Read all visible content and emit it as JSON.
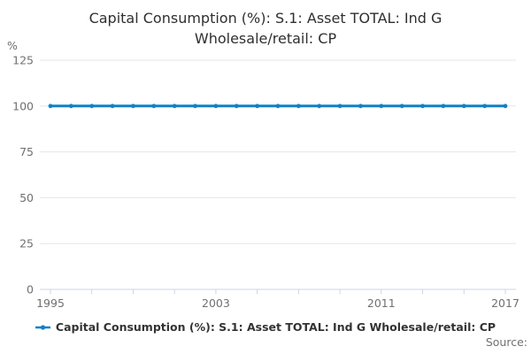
{
  "chart_data": {
    "type": "line",
    "title": "Capital Consumption (%): S.1: Asset TOTAL: Ind G Wholesale/retail: CP",
    "xlabel": "",
    "ylabel": "%",
    "x": [
      1995,
      1996,
      1997,
      1998,
      1999,
      2000,
      2001,
      2002,
      2003,
      2004,
      2005,
      2006,
      2007,
      2008,
      2009,
      2010,
      2011,
      2012,
      2013,
      2014,
      2015,
      2016,
      2017
    ],
    "series": [
      {
        "name": "Capital Consumption (%): S.1: Asset TOTAL: Ind G Wholesale/retail: CP",
        "values": [
          100,
          100,
          100,
          100,
          100,
          100,
          100,
          100,
          100,
          100,
          100,
          100,
          100,
          100,
          100,
          100,
          100,
          100,
          100,
          100,
          100,
          100,
          100
        ],
        "color": "#1180c7"
      }
    ],
    "ylim": [
      0,
      125
    ],
    "yticks": [
      0,
      25,
      50,
      75,
      100,
      125
    ],
    "xticks": [
      1995,
      1997,
      1999,
      2001,
      2003,
      2005,
      2007,
      2009,
      2011,
      2013,
      2015,
      2017
    ],
    "xtick_labels": [
      "1995",
      "2003",
      "2011",
      "2017"
    ],
    "grid": true,
    "legend_position": "bottom"
  },
  "footer": {
    "source_label": "Source:"
  },
  "colors": {
    "line": "#1180c7",
    "grid": "#e6e6e6",
    "axis": "#c9d6e8",
    "tick_text": "#707070",
    "title_text": "#2f2f2f",
    "legend_text": "#333333",
    "source_text": "#707070"
  }
}
